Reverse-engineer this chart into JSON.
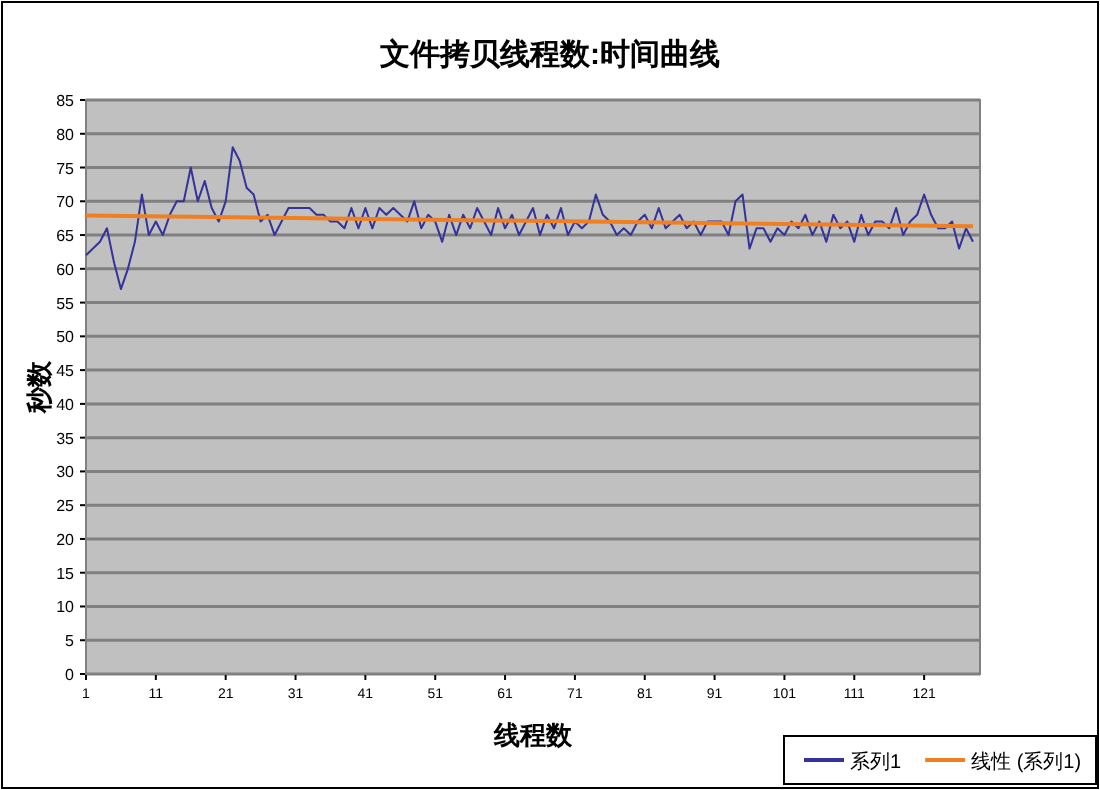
{
  "chart_data": {
    "type": "line",
    "title": "文件拷贝线程数:时间曲线",
    "xlabel": "线程数",
    "ylabel": "秒数",
    "x": [
      1,
      2,
      3,
      4,
      5,
      6,
      7,
      8,
      9,
      10,
      11,
      12,
      13,
      14,
      15,
      16,
      17,
      18,
      19,
      20,
      21,
      22,
      23,
      24,
      25,
      26,
      27,
      28,
      29,
      30,
      31,
      32,
      33,
      34,
      35,
      36,
      37,
      38,
      39,
      40,
      41,
      42,
      43,
      44,
      45,
      46,
      47,
      48,
      49,
      50,
      51,
      52,
      53,
      54,
      55,
      56,
      57,
      58,
      59,
      60,
      61,
      62,
      63,
      64,
      65,
      66,
      67,
      68,
      69,
      70,
      71,
      72,
      73,
      74,
      75,
      76,
      77,
      78,
      79,
      80,
      81,
      82,
      83,
      84,
      85,
      86,
      87,
      88,
      89,
      90,
      91,
      92,
      93,
      94,
      95,
      96,
      97,
      98,
      99,
      100,
      101,
      102,
      103,
      104,
      105,
      106,
      107,
      108,
      109,
      110,
      111,
      112,
      113,
      114,
      115,
      116,
      117,
      118,
      119,
      120,
      121,
      122,
      123,
      124,
      125,
      126,
      127,
      128
    ],
    "series": [
      {
        "name": "系列1",
        "color": "#333399",
        "values": [
          62,
          63,
          64,
          66,
          61,
          57,
          60,
          64,
          71,
          65,
          67,
          65,
          68,
          70,
          70,
          75,
          70,
          73,
          69,
          67,
          70,
          78,
          76,
          72,
          71,
          67,
          68,
          65,
          67,
          69,
          69,
          69,
          69,
          68,
          68,
          67,
          67,
          66,
          69,
          66,
          69,
          66,
          69,
          68,
          69,
          68,
          67,
          70,
          66,
          68,
          67,
          64,
          68,
          65,
          68,
          66,
          69,
          67,
          65,
          69,
          66,
          68,
          65,
          67,
          69,
          65,
          68,
          66,
          69,
          65,
          67,
          66,
          67,
          71,
          68,
          67,
          65,
          66,
          65,
          67,
          68,
          66,
          69,
          66,
          67,
          68,
          66,
          67,
          65,
          67,
          67,
          67,
          65,
          70,
          71,
          63,
          66,
          66,
          64,
          66,
          65,
          67,
          66,
          68,
          65,
          67,
          64,
          68,
          66,
          67,
          64,
          68,
          65,
          67,
          67,
          66,
          69,
          65,
          67,
          68,
          71,
          68,
          66,
          66,
          67,
          63,
          66,
          64
        ]
      },
      {
        "name": "线性 (系列1)",
        "color": "#f07f22",
        "x": [
          1,
          128
        ],
        "values": [
          67.9,
          66.3
        ]
      }
    ],
    "xlim": [
      1,
      129
    ],
    "xticks": [
      1,
      11,
      21,
      31,
      41,
      51,
      61,
      71,
      81,
      91,
      101,
      111,
      121
    ],
    "ylim": [
      0,
      85
    ],
    "yticks": [
      0,
      5,
      10,
      15,
      20,
      25,
      30,
      35,
      40,
      45,
      50,
      55,
      60,
      65,
      70,
      75,
      80,
      85
    ],
    "grid": "y",
    "legend": "bottom right"
  }
}
